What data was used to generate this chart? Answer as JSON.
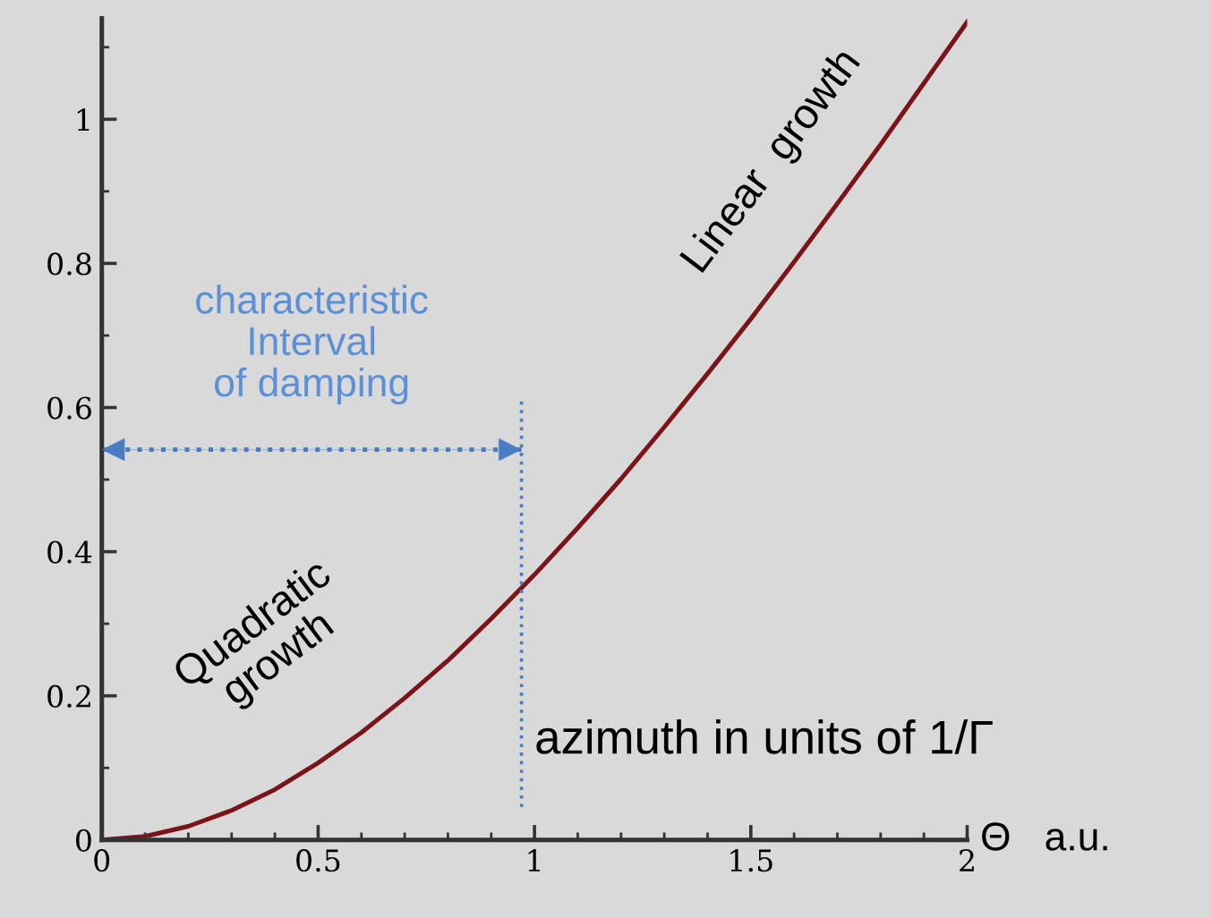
{
  "chart_data": {
    "type": "line",
    "xlabel": "Θ   a.u.",
    "x": [
      0,
      0.1,
      0.2,
      0.3,
      0.4,
      0.5,
      0.6,
      0.7,
      0.8,
      0.9,
      1.0,
      1.1,
      1.2,
      1.3,
      1.4,
      1.5,
      1.6,
      1.7,
      1.8,
      1.9,
      2.0
    ],
    "series": [
      {
        "color": "#7a1418",
        "values": [
          0,
          0.005,
          0.019,
          0.041,
          0.07,
          0.107,
          0.149,
          0.197,
          0.249,
          0.307,
          0.368,
          0.433,
          0.501,
          0.573,
          0.647,
          0.723,
          0.802,
          0.883,
          0.965,
          1.05,
          1.135
        ]
      }
    ],
    "xlim": [
      0,
      2
    ],
    "ylim": [
      0,
      1.14
    ],
    "xticks": [
      0,
      0.5,
      1,
      1.5,
      2
    ],
    "yticks": [
      0,
      0.2,
      0.4,
      0.6,
      0.8,
      1
    ],
    "ref_lines": [
      {
        "axis": "x",
        "value": 0.97,
        "color": "#4a7cc4",
        "line_style": "dotted"
      }
    ],
    "annotations": [
      "characteristic\nInterval\nof damping",
      "Linear  growth",
      "Quadratic\ngrowth",
      "azimuth in units of 1/Γ"
    ],
    "grid": false,
    "legend": false,
    "marker": "none",
    "line_style": "solid"
  }
}
